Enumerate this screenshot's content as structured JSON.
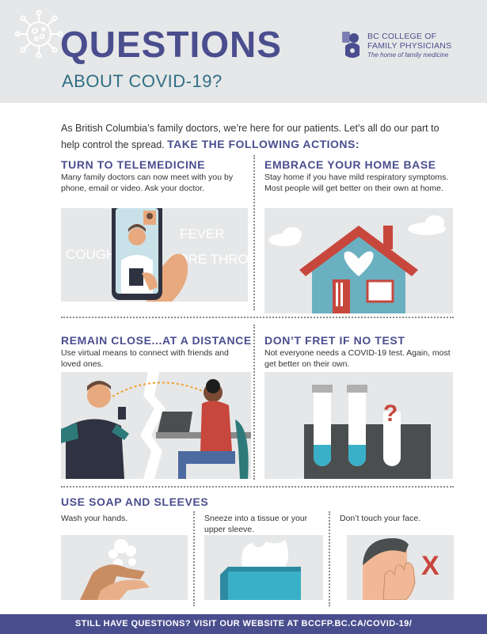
{
  "header": {
    "title": "QUESTIONS",
    "subtitle": "ABOUT COVID-19?",
    "logo": {
      "line1": "BC COLLEGE OF",
      "line2": "FAMILY PHYSICIANS",
      "tagline": "The home of family medicine"
    }
  },
  "intro": {
    "text": "As British Columbia’s family doctors, we’re here for our patients. Let’s all do our part to help control the spread.",
    "cta": "TAKE THE FOLLOWING ACTIONS:"
  },
  "sections": {
    "telemedicine": {
      "title": "TURN TO TELEMEDICINE",
      "body": "Many family doctors can now meet with you by phone, email or video. Ask your doctor.",
      "illustration_words": [
        "COUGH",
        "FEVER",
        "SORE THROAT"
      ]
    },
    "home_base": {
      "title": "EMBRACE YOUR HOME BASE",
      "body": "Stay home if you have mild respiratory symptoms. Most people will get better on their own at home."
    },
    "distance": {
      "title": "REMAIN CLOSE...AT A DISTANCE",
      "body": "Use virtual means to connect with friends and loved ones."
    },
    "no_test": {
      "title": "DON’T FRET IF NO TEST",
      "body": "Not everyone needs a COVID-19 test. Again, most get better on their own.",
      "mark": "?"
    },
    "soap": {
      "title": "USE SOAP AND SLEEVES",
      "items": [
        {
          "body": "Wash your hands."
        },
        {
          "body": "Sneeze into a tissue or your upper sleeve."
        },
        {
          "body": "Don’t touch your face.",
          "mark": "X"
        }
      ]
    }
  },
  "footer": {
    "text": "STILL HAVE QUESTIONS? VISIT OUR WEBSITE AT BCCFP.BC.CA/COVID-19/"
  },
  "colors": {
    "primary": "#4a4e8e",
    "teal": "#2e6f86",
    "header_bg": "#e6e7e8",
    "house_roof": "#c7473d",
    "house_wall": "#6bb0c0",
    "accent_red": "#c7473d"
  },
  "icons": [
    "virus-icon",
    "college-logo-icon"
  ]
}
